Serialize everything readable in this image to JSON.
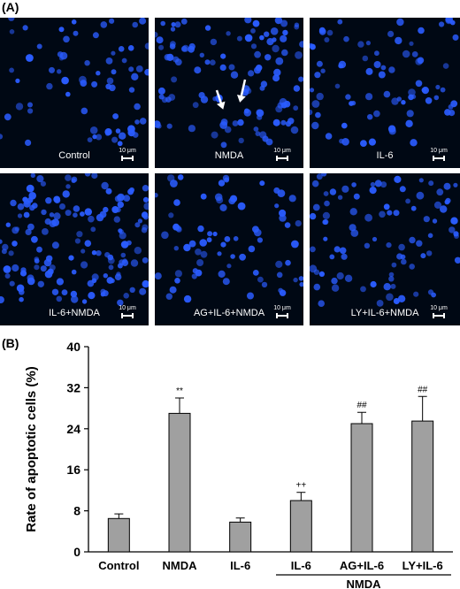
{
  "panel_a": {
    "label": "(A)",
    "tiles": [
      {
        "label": "Control",
        "scale": "10 μm"
      },
      {
        "label": "NMDA",
        "scale": "10 μm"
      },
      {
        "label": "IL-6",
        "scale": "10 μm"
      },
      {
        "label": "IL-6+NMDA",
        "scale": "10 μm"
      },
      {
        "label": "AG+IL-6+NMDA",
        "scale": "10 μm"
      },
      {
        "label": "LY+IL-6+NMDA",
        "scale": "10 μm"
      }
    ],
    "cell_color": "#2a5cff",
    "background_color": "#000814"
  },
  "panel_b": {
    "label": "(B)"
  },
  "chart_data": {
    "type": "bar",
    "categories": [
      "Control",
      "NMDA",
      "IL-6",
      "IL-6",
      "AG+IL-6",
      "LY+IL-6"
    ],
    "values": [
      6.5,
      27.0,
      5.8,
      10.0,
      25.0,
      25.5
    ],
    "errors": [
      0.9,
      3.0,
      0.8,
      1.6,
      2.2,
      4.8
    ],
    "annotations": [
      "",
      "**",
      "",
      "++",
      "##",
      "##"
    ],
    "group_label": "NMDA",
    "group_span": [
      3,
      5
    ],
    "ylabel": "Rate of apoptotic cells (%)",
    "xlabel": "",
    "ylim": [
      0,
      40
    ],
    "yticks": [
      0,
      8,
      16,
      24,
      32,
      40
    ],
    "bar_color": "#a0a0a0",
    "grid": false
  }
}
